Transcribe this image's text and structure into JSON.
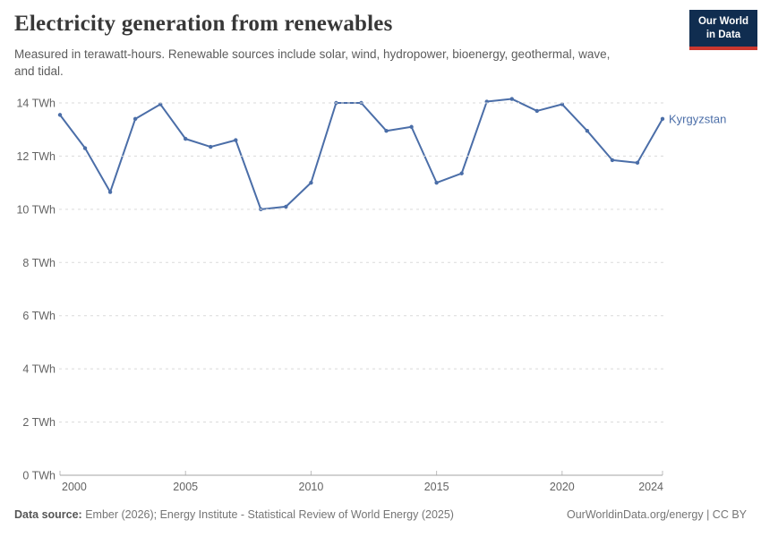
{
  "header": {
    "title": "Electricity generation from renewables",
    "subtitle": "Measured in terawatt-hours. Renewable sources include solar, wind, hydropower, bioenergy, geothermal, wave, and tidal.",
    "logo": {
      "line1": "Our World",
      "line2": "in Data"
    }
  },
  "chart_data": {
    "type": "line",
    "title": "Electricity generation from renewables",
    "unit": "TWh",
    "xlim": [
      2000,
      2024
    ],
    "ylim": [
      0,
      14
    ],
    "grid": "horizontal dashed",
    "legend_position": "end-of-line label",
    "line_color": "#4B6EA8",
    "x_ticks": [
      "2000",
      "2005",
      "2010",
      "2015",
      "2020",
      "2024"
    ],
    "y_ticks": [
      {
        "value": 0,
        "label": "0 TWh"
      },
      {
        "value": 2,
        "label": "2 TWh"
      },
      {
        "value": 4,
        "label": "4 TWh"
      },
      {
        "value": 6,
        "label": "6 TWh"
      },
      {
        "value": 8,
        "label": "8 TWh"
      },
      {
        "value": 10,
        "label": "10 TWh"
      },
      {
        "value": 12,
        "label": "12 TWh"
      },
      {
        "value": 14,
        "label": "14 TWh"
      }
    ],
    "series": [
      {
        "name": "Kyrgyzstan",
        "x": [
          2000,
          2001,
          2002,
          2003,
          2004,
          2005,
          2006,
          2007,
          2008,
          2009,
          2010,
          2011,
          2012,
          2013,
          2014,
          2015,
          2016,
          2017,
          2018,
          2019,
          2020,
          2021,
          2022,
          2023,
          2024
        ],
        "values": [
          13.55,
          12.3,
          10.65,
          13.4,
          13.95,
          12.65,
          12.35,
          12.6,
          10.0,
          10.1,
          11.0,
          14.0,
          14.0,
          12.95,
          13.1,
          11.0,
          11.35,
          14.05,
          14.15,
          13.7,
          13.95,
          12.95,
          11.85,
          11.75,
          13.4
        ]
      }
    ]
  },
  "footer": {
    "source_label": "Data source:",
    "source_text": "Ember (2026); Energy Institute - Statistical Review of World Energy (2025)",
    "credit": "OurWorldinData.org/energy | CC BY"
  }
}
